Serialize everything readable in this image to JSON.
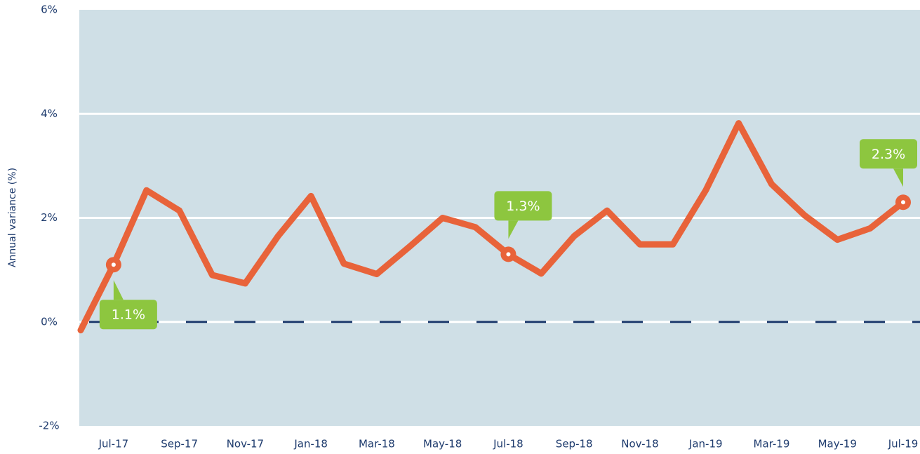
{
  "chart_data": {
    "type": "line",
    "y_label": "Annual variance (%)",
    "categories": [
      null,
      "Jul-17",
      null,
      "Sep-17",
      null,
      "Nov-17",
      null,
      "Jan-18",
      null,
      "Mar-18",
      null,
      "May-18",
      null,
      "Jul-18",
      null,
      "Sep-18",
      null,
      "Nov-18",
      null,
      "Jan-19",
      null,
      "Mar-19",
      null,
      "May-19",
      null,
      "Jul-19"
    ],
    "series": [
      {
        "name": "Annual variance",
        "color": "#e8633a",
        "values": [
          -0.16,
          1.1,
          2.53,
          2.14,
          0.9,
          0.74,
          1.65,
          2.42,
          1.12,
          0.92,
          1.45,
          2.0,
          1.82,
          1.3,
          0.93,
          1.65,
          2.14,
          1.49,
          1.49,
          2.53,
          3.82,
          2.65,
          2.05,
          1.58,
          1.8,
          2.3
        ],
        "value_labels": [
          null,
          "1.1%",
          null,
          null,
          null,
          null,
          null,
          null,
          null,
          null,
          null,
          null,
          null,
          "1.3%",
          null,
          null,
          null,
          null,
          null,
          null,
          null,
          null,
          null,
          null,
          null,
          "2.3%"
        ]
      }
    ],
    "ylim": [
      -2,
      6
    ],
    "yticks": [
      {
        "value": -2,
        "label": "-2%"
      },
      {
        "value": 0,
        "label": "0%"
      },
      {
        "value": 2,
        "label": "2%"
      },
      {
        "value": 4,
        "label": "4%"
      },
      {
        "value": 6,
        "label": "6%"
      }
    ],
    "grid": true,
    "plot_background": "#cfdfe6",
    "zero_line_color": "#1f3c6e",
    "label_color": "#8dc63f"
  }
}
